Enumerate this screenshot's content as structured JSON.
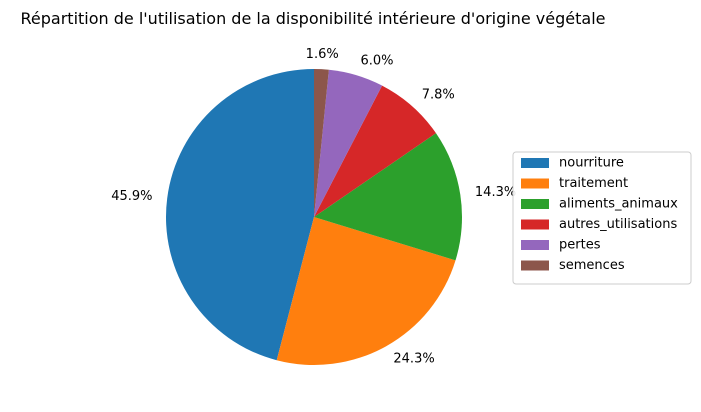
{
  "chart_data": {
    "type": "pie",
    "title": "Répartition de l'utilisation de la disponibilité intérieure d'origine végétale",
    "categories": [
      "nourriture",
      "traitement",
      "aliments_animaux",
      "autres_utilisations",
      "pertes",
      "semences"
    ],
    "values": [
      45.9,
      24.3,
      14.3,
      7.8,
      6.0,
      1.6
    ],
    "labels": [
      "45.9%",
      "24.3%",
      "14.3%",
      "7.8%",
      "6.0%",
      "1.6%"
    ],
    "colors": [
      "#1f77b4",
      "#ff7f0e",
      "#2ca02c",
      "#d62728",
      "#9467bd",
      "#8c564b"
    ],
    "start_angle_deg": 90,
    "direction": "counterclockwise",
    "legend_position": "right"
  }
}
